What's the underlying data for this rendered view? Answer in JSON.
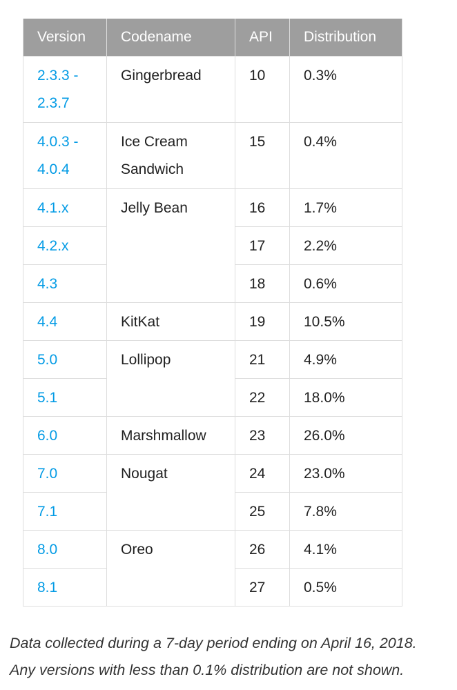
{
  "table": {
    "headers": {
      "version": "Version",
      "codename": "Codename",
      "api": "API",
      "distribution": "Distribution"
    },
    "rows": [
      {
        "version": "2.3.3 - 2.3.7",
        "codename": "Gingerbread",
        "api": "10",
        "distribution": "0.3%"
      },
      {
        "version": "4.0.3 - 4.0.4",
        "codename": "Ice Cream Sandwich",
        "api": "15",
        "distribution": "0.4%"
      },
      {
        "version": "4.1.x",
        "codename": "Jelly Bean",
        "api": "16",
        "distribution": "1.7%"
      },
      {
        "version": "4.2.x",
        "codename": "",
        "api": "17",
        "distribution": "2.2%"
      },
      {
        "version": "4.3",
        "codename": "",
        "api": "18",
        "distribution": "0.6%"
      },
      {
        "version": "4.4",
        "codename": "KitKat",
        "api": "19",
        "distribution": "10.5%"
      },
      {
        "version": "5.0",
        "codename": "Lollipop",
        "api": "21",
        "distribution": "4.9%"
      },
      {
        "version": "5.1",
        "codename": "",
        "api": "22",
        "distribution": "18.0%"
      },
      {
        "version": "6.0",
        "codename": "Marshmallow",
        "api": "23",
        "distribution": "26.0%"
      },
      {
        "version": "7.0",
        "codename": "Nougat",
        "api": "24",
        "distribution": "23.0%"
      },
      {
        "version": "7.1",
        "codename": "",
        "api": "25",
        "distribution": "7.8%"
      },
      {
        "version": "8.0",
        "codename": "Oreo",
        "api": "26",
        "distribution": "4.1%"
      },
      {
        "version": "8.1",
        "codename": "",
        "api": "27",
        "distribution": "0.5%"
      }
    ]
  },
  "footnote": {
    "line1": "Data collected during a 7-day period ending on April 16, 2018.",
    "line2": "Any versions with less than 0.1% distribution are not shown."
  },
  "colors": {
    "header_bg": "#9e9e9e",
    "link": "#039be5",
    "border": "#dddddd"
  }
}
